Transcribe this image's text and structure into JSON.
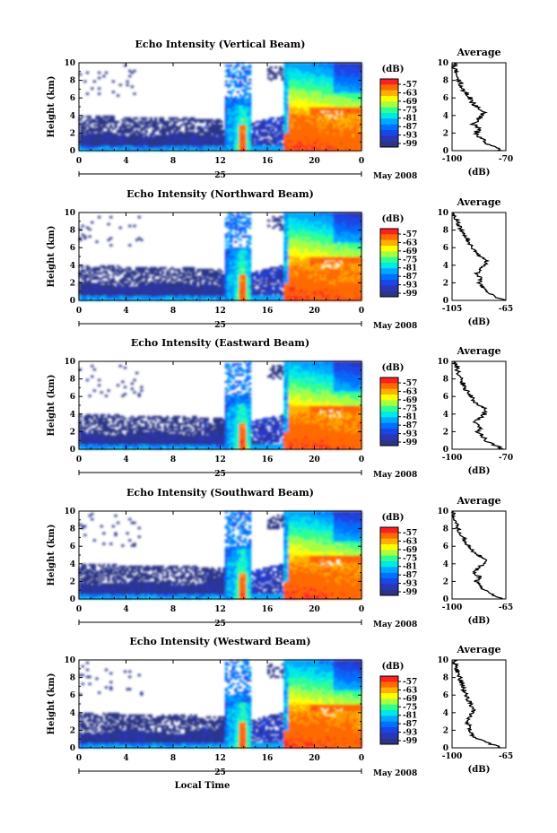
{
  "chart_data": {
    "type": "heatmap",
    "x_axis": {
      "label": "Local Time",
      "range": [
        0,
        24
      ],
      "ticks": [
        "0",
        "4",
        "8",
        "12",
        "16",
        "20",
        "0"
      ],
      "date_day": "25",
      "month_year": "May 2008"
    },
    "y_axis": {
      "label": "Height (km)",
      "range": [
        0,
        10
      ],
      "ticks": [
        "0",
        "2",
        "4",
        "6",
        "8",
        "10"
      ]
    },
    "colorbar": {
      "label": "(dB)",
      "ticks": [
        "-57",
        "-63",
        "-69",
        "-75",
        "-81",
        "-87",
        "-93",
        "-99"
      ],
      "colors": [
        "#ff2020",
        "#ff6a00",
        "#ffb000",
        "#ffff00",
        "#a8ff40",
        "#30ff90",
        "#00e8e8",
        "#00a8ff",
        "#0070ff",
        "#1a46e8",
        "#2a35b8",
        "#2b3485"
      ]
    },
    "weather_events_local_time": [
      {
        "start": 12.4,
        "end": 14.6,
        "peak": 13.9
      },
      {
        "start": 17.4,
        "end": 24.0,
        "peak": 19.0
      }
    ],
    "panels": [
      {
        "title": "Echo Intensity (Vertical Beam)",
        "avg_title": "Average",
        "avg_xlabel": "(dB)",
        "avg_xticks": [
          "-100",
          "-70"
        ],
        "avg_xrange": [
          -100,
          -70
        ],
        "avg_profile": {
          "height_km": [
            0,
            0.5,
            1,
            1.5,
            2,
            2.5,
            3,
            3.5,
            4,
            4.5,
            5,
            5.5,
            6,
            6.5,
            7,
            7.5,
            8,
            8.5,
            9,
            9.5,
            10
          ],
          "db": [
            -72,
            -78,
            -82,
            -84,
            -87,
            -85,
            -88,
            -86,
            -83,
            -82,
            -86,
            -89,
            -90,
            -92,
            -94,
            -95,
            -96,
            -97,
            -98,
            -99,
            -99
          ]
        }
      },
      {
        "title": "Echo Intensity (Northward Beam)",
        "avg_title": "Average",
        "avg_xlabel": "(dB)",
        "avg_xticks": [
          "-105",
          "-65"
        ],
        "avg_xrange": [
          -105,
          -65
        ],
        "avg_profile": {
          "height_km": [
            0,
            0.5,
            1,
            1.5,
            2,
            2.5,
            3,
            3.5,
            4,
            4.5,
            5,
            5.5,
            6,
            6.5,
            7,
            7.5,
            8,
            8.5,
            9,
            9.5,
            10
          ],
          "db": [
            -66,
            -74,
            -80,
            -82,
            -85,
            -83,
            -87,
            -84,
            -81,
            -79,
            -84,
            -88,
            -90,
            -92,
            -94,
            -96,
            -98,
            -100,
            -101,
            -103,
            -104
          ]
        }
      },
      {
        "title": "Echo Intensity (Eastward Beam)",
        "avg_title": "Average",
        "avg_xlabel": "(dB)",
        "avg_xticks": [
          "-100",
          "-70"
        ],
        "avg_xrange": [
          -100,
          -70
        ],
        "avg_profile": {
          "height_km": [
            0,
            0.5,
            1,
            1.5,
            2,
            2.5,
            3,
            3.5,
            4,
            4.5,
            5,
            5.5,
            6,
            6.5,
            7,
            7.5,
            8,
            8.5,
            9,
            9.5,
            10
          ],
          "db": [
            -71,
            -77,
            -81,
            -83,
            -86,
            -84,
            -87,
            -85,
            -82,
            -81,
            -85,
            -88,
            -89,
            -91,
            -93,
            -94,
            -95,
            -96,
            -97,
            -98,
            -99
          ]
        }
      },
      {
        "title": "Echo Intensity (Southward Beam)",
        "avg_title": "Average",
        "avg_xlabel": "(dB)",
        "avg_xticks": [
          "-100",
          "-65"
        ],
        "avg_xrange": [
          -100,
          -65
        ],
        "avg_profile": {
          "height_km": [
            0,
            0.5,
            1,
            1.5,
            2,
            2.5,
            3,
            3.5,
            4,
            4.5,
            5,
            5.5,
            6,
            6.5,
            7,
            7.5,
            8,
            8.5,
            9,
            9.5,
            10
          ],
          "db": [
            -67,
            -74,
            -79,
            -81,
            -84,
            -82,
            -86,
            -83,
            -80,
            -78,
            -83,
            -87,
            -89,
            -91,
            -93,
            -95,
            -96,
            -97,
            -98,
            -99,
            -99
          ]
        }
      },
      {
        "title": "Echo Intensity (Westward Beam)",
        "avg_title": "Average",
        "avg_xlabel": "(dB)",
        "avg_xticks": [
          "-100",
          "-65"
        ],
        "avg_xrange": [
          -100,
          -65
        ],
        "avg_profile": {
          "height_km": [
            0,
            0.5,
            1,
            1.5,
            2,
            2.5,
            3,
            3.5,
            4,
            4.5,
            5,
            5.5,
            6,
            6.5,
            7,
            7.5,
            8,
            8.5,
            9,
            9.5,
            10
          ],
          "db": [
            -68,
            -76,
            -83,
            -87,
            -89,
            -88,
            -91,
            -89,
            -87,
            -86,
            -88,
            -90,
            -91,
            -92,
            -93,
            -94,
            -95,
            -96,
            -97,
            -98,
            -99
          ]
        }
      }
    ]
  }
}
